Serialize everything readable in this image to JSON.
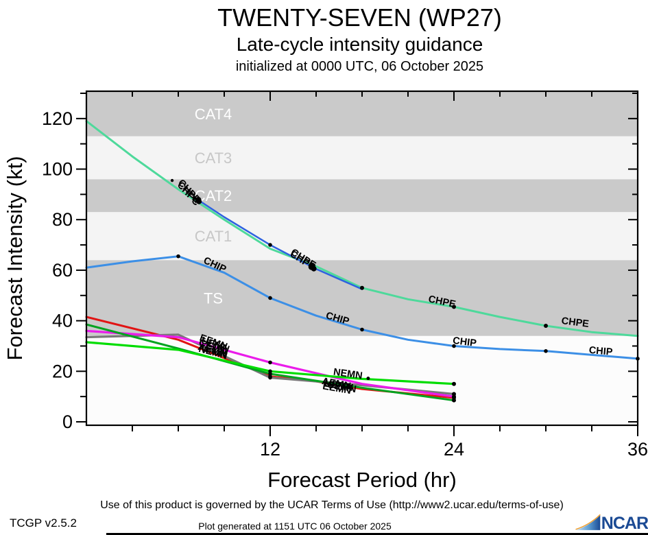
{
  "header": {
    "title": "TWENTY-SEVEN (WP27)",
    "subtitle": "Late-cycle intensity guidance",
    "init_line": "initialized at 0000 UTC, 06 October 2025"
  },
  "footer": {
    "terms": "Use of this product is governed by the UCAR Terms of Use (http://www2.ucar.edu/terms-of-use)",
    "version": "TCGP v2.5.2",
    "generated": "Plot generated at 1151 UTC   06 October 2025",
    "logo_text": "NCAR"
  },
  "icons": {
    "ncar_swoosh": "ncar-swoosh-icon"
  },
  "colors": {
    "band_dark": "#cacaca",
    "band_light": "#f4f4f4",
    "plot_bg": "#fcfcfc",
    "axis": "#000000",
    "ncar_navy": "#1b4a94",
    "ncar_orange": "#f0a030"
  },
  "chart_data": {
    "type": "line",
    "title": "TWENTY-SEVEN (WP27) late-cycle intensity guidance",
    "xlabel": "Forecast Period (hr)",
    "ylabel": "Forecast Intensity (kt)",
    "xlim": [
      0,
      36
    ],
    "ylim": [
      0,
      131
    ],
    "grid": false,
    "legend": "labels-on-lines",
    "x_major_ticks": [
      12,
      24,
      36
    ],
    "x_minor_step": 3,
    "y_major_ticks": [
      0,
      20,
      40,
      60,
      80,
      100,
      120
    ],
    "y_minor_step": 10,
    "band_dark": "#cacaca",
    "band_light": "#f4f4f4",
    "bands": [
      {
        "label": "TS",
        "from": 34,
        "to": 64,
        "shade": "dark",
        "label_color": "white"
      },
      {
        "label": "CAT1",
        "from": 64,
        "to": 83,
        "shade": "light",
        "label_color": "gray"
      },
      {
        "label": "CAT2",
        "from": 83,
        "to": 96,
        "shade": "dark",
        "label_color": "white"
      },
      {
        "label": "CAT3",
        "from": 96,
        "to": 113,
        "shade": "light",
        "label_color": "gray"
      },
      {
        "label": "CAT4",
        "from": 113,
        "to": 131,
        "shade": "dark",
        "label_color": "white"
      }
    ],
    "series": [
      {
        "name": "CHPE",
        "color": "#4ed99b",
        "width": 3,
        "points": [
          [
            0,
            119
          ],
          [
            3,
            105
          ],
          [
            6,
            92
          ],
          [
            9,
            80
          ],
          [
            12,
            68.5
          ],
          [
            15,
            61.5
          ],
          [
            18,
            53
          ],
          [
            21,
            48.5
          ],
          [
            24,
            45.5
          ],
          [
            27,
            41.5
          ],
          [
            30,
            38
          ],
          [
            33,
            35.5
          ],
          [
            36,
            34
          ]
        ],
        "markers": [
          [
            5.6,
            95.5,
            2.2
          ],
          [
            7.3,
            87.8,
            4.5
          ],
          [
            14.7,
            61.3,
            4.5
          ],
          [
            18,
            53,
            3
          ],
          [
            24,
            45.5,
            3
          ],
          [
            30,
            38,
            3
          ]
        ],
        "labels": [
          {
            "t": 5.95,
            "v": 94.5,
            "rot": 48
          },
          {
            "t": 13.3,
            "v": 66.5,
            "rot": 33
          },
          {
            "t": 22.3,
            "v": 47.5,
            "rot": 12
          },
          {
            "t": 31.0,
            "v": 38.8,
            "rot": 7
          }
        ]
      },
      {
        "name": "CHPC",
        "color": "#2e62e0",
        "width": 2.5,
        "points": [
          [
            7.3,
            87.8
          ],
          [
            9,
            81
          ],
          [
            12,
            70
          ],
          [
            15,
            60.5
          ],
          [
            18,
            52.5
          ]
        ],
        "markers": [
          [
            7.35,
            87.2,
            4
          ],
          [
            12,
            70,
            2.8
          ],
          [
            14.85,
            60.6,
            4
          ]
        ],
        "labels": [
          {
            "t": 5.9,
            "v": 93.6,
            "rot": 48
          },
          {
            "t": 13.25,
            "v": 65.8,
            "rot": 33
          }
        ]
      },
      {
        "name": "CHIP",
        "color": "#3c8fe6",
        "width": 3,
        "points": [
          [
            0,
            61
          ],
          [
            3,
            63.5
          ],
          [
            6,
            65.5
          ],
          [
            9,
            59
          ],
          [
            12,
            49
          ],
          [
            15,
            42
          ],
          [
            18,
            36.5
          ],
          [
            21,
            32.5
          ],
          [
            24,
            30
          ],
          [
            27,
            28.8
          ],
          [
            30,
            28
          ],
          [
            33,
            26.5
          ],
          [
            36,
            25
          ]
        ],
        "markers": [
          [
            6,
            65.5,
            2.8
          ],
          [
            12,
            49,
            2.8
          ],
          [
            18,
            36.5,
            2.8
          ],
          [
            24,
            30,
            2.8
          ],
          [
            30,
            28,
            2.8
          ],
          [
            36,
            25,
            2.8
          ]
        ],
        "labels": [
          {
            "t": 7.6,
            "v": 63,
            "rot": 25
          },
          {
            "t": 15.6,
            "v": 41,
            "rot": 16
          },
          {
            "t": 23.9,
            "v": 31,
            "rot": 7
          },
          {
            "t": 32.8,
            "v": 27.2,
            "rot": 5
          }
        ]
      },
      {
        "name": "EEMN",
        "color": "#e11414",
        "width": 3,
        "points": [
          [
            0,
            41.5
          ],
          [
            6,
            32.5
          ],
          [
            12,
            18
          ],
          [
            15,
            16
          ],
          [
            18,
            13
          ],
          [
            24,
            9.5
          ]
        ],
        "markers": [
          [
            12,
            18,
            2.8
          ],
          [
            24,
            9.5,
            3
          ]
        ],
        "labels": [
          {
            "t": 7.35,
            "v": 32.3,
            "rot": 20
          },
          {
            "t": 15.4,
            "v": 13,
            "rot": 10
          }
        ]
      },
      {
        "name": "CEMN",
        "color": "#787878",
        "width": 3.2,
        "points": [
          [
            0,
            33.5
          ],
          [
            6,
            34.5
          ],
          [
            12,
            17.5
          ],
          [
            18,
            14.5
          ],
          [
            24,
            11
          ]
        ],
        "markers": [
          [
            12,
            17.5,
            2.8
          ],
          [
            24,
            11,
            3
          ]
        ],
        "labels": [
          {
            "t": 7.3,
            "v": 30.4,
            "rot": 19
          },
          {
            "t": 15.7,
            "v": 13.6,
            "rot": 10
          }
        ]
      },
      {
        "name": "UEMN",
        "color": "#ea1cea",
        "width": 3.2,
        "points": [
          [
            0,
            36
          ],
          [
            6,
            33.5
          ],
          [
            12,
            23.5
          ],
          [
            18,
            15
          ],
          [
            24,
            10
          ]
        ],
        "markers": [
          [
            12,
            23.5,
            2.8
          ],
          [
            24,
            10,
            3
          ]
        ],
        "labels": [
          {
            "t": 7.45,
            "v": 31.3,
            "rot": 20
          },
          {
            "t": 15.5,
            "v": 14.2,
            "rot": 10
          }
        ]
      },
      {
        "name": "AEMN",
        "color": "#00a31f",
        "width": 3,
        "points": [
          [
            0,
            38.5
          ],
          [
            6,
            29
          ],
          [
            12,
            19
          ],
          [
            18,
            13.5
          ],
          [
            24,
            8.5
          ]
        ],
        "markers": [
          [
            12,
            19,
            2.8
          ],
          [
            24,
            8.5,
            3
          ]
        ],
        "labels": [
          {
            "t": 7.25,
            "v": 28.6,
            "rot": 16
          },
          {
            "t": 15.35,
            "v": 15,
            "rot": 11
          }
        ]
      },
      {
        "name": "NEMN",
        "color": "#00dd00",
        "width": 3.2,
        "points": [
          [
            0,
            31.5
          ],
          [
            6,
            28.5
          ],
          [
            12,
            20
          ],
          [
            18,
            17
          ],
          [
            24,
            15
          ]
        ],
        "markers": [
          [
            12,
            20,
            2.8
          ],
          [
            18.4,
            17.2,
            2.5
          ],
          [
            24,
            15,
            3
          ]
        ],
        "labels": [
          {
            "t": 7.3,
            "v": 27.8,
            "rot": 15
          },
          {
            "t": 16.1,
            "v": 18.6,
            "rot": 8
          }
        ]
      }
    ]
  }
}
